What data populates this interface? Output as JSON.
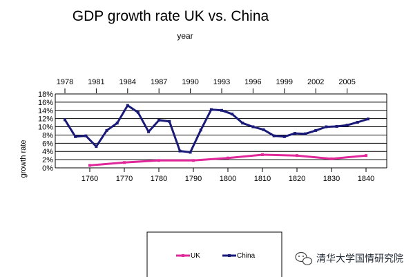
{
  "chart_data": {
    "type": "line",
    "title": "GDP growth rate  UK  vs. China",
    "top_axis_label": "year",
    "ylabel": "growth rate",
    "ylim": [
      0,
      18
    ],
    "y_ticks": [
      "0%",
      "2%",
      "4%",
      "6%",
      "8%",
      "10%",
      "12%",
      "14%",
      "16%",
      "18%"
    ],
    "grid": true,
    "legend_position": "bottom",
    "top_axis": {
      "range": [
        1978,
        2008
      ],
      "ticks": [
        1978,
        1981,
        1984,
        1987,
        1990,
        1993,
        1996,
        1999,
        2002,
        2005
      ],
      "tick_labels": [
        "1978",
        "1981",
        "1984",
        "1987",
        "1990",
        "1993",
        "1996",
        "1999",
        "2002",
        "2005"
      ]
    },
    "bottom_axis": {
      "range": [
        1752,
        1845
      ],
      "ticks": [
        1760,
        1770,
        1780,
        1790,
        1800,
        1810,
        1820,
        1830,
        1840
      ],
      "tick_labels": [
        "1760",
        "1770",
        "1780",
        "1790",
        "1800",
        "1810",
        "1820",
        "1830",
        "1840"
      ]
    },
    "series": [
      {
        "name": "UK",
        "axis": "bottom",
        "color": "#e0289a",
        "x": [
          1760,
          1770,
          1780,
          1790,
          1800,
          1810,
          1820,
          1830,
          1840
        ],
        "y": [
          0.6,
          1.3,
          1.8,
          1.8,
          2.4,
          3.2,
          3.0,
          2.2,
          3.0
        ]
      },
      {
        "name": "China",
        "axis": "top",
        "color": "#1a1a78",
        "x": [
          1978,
          1979,
          1980,
          1981,
          1982,
          1983,
          1984,
          1985,
          1986,
          1987,
          1988,
          1989,
          1990,
          1991,
          1992,
          1993,
          1994,
          1995,
          1996,
          1997,
          1998,
          1999,
          2000,
          2001,
          2002,
          2003,
          2004,
          2005,
          2006,
          2007
        ],
        "y": [
          11.7,
          7.6,
          7.8,
          5.2,
          9.1,
          10.9,
          15.2,
          13.5,
          8.8,
          11.6,
          11.3,
          4.1,
          3.8,
          9.2,
          14.2,
          14.0,
          13.1,
          10.9,
          10.0,
          9.3,
          7.8,
          7.6,
          8.4,
          8.3,
          9.1,
          10.0,
          10.1,
          10.4,
          11.1,
          11.9
        ]
      }
    ]
  },
  "watermark": {
    "text": "清华大学国情研究院",
    "icon": "wechat-icon"
  }
}
